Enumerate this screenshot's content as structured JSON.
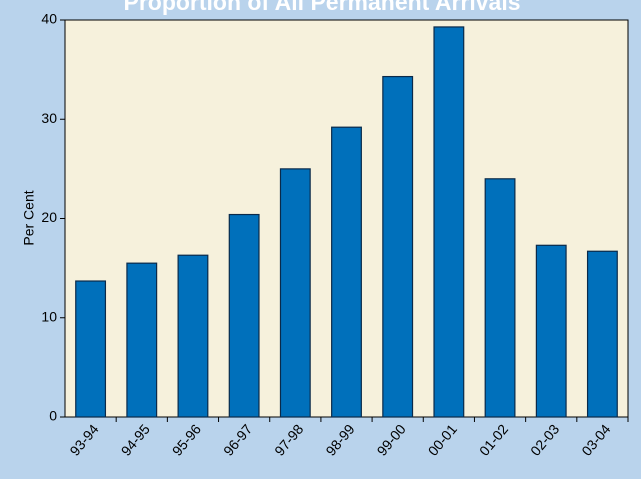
{
  "chart_data": {
    "type": "bar",
    "title": "Proportion of All Permanent Arrivals",
    "y_label": "Per Cent",
    "categories": [
      "93-94",
      "94-95",
      "95-96",
      "96-97",
      "97-98",
      "98-99",
      "99-00",
      "00-01",
      "01-02",
      "02-03",
      "03-04"
    ],
    "values": [
      13.7,
      15.5,
      16.3,
      20.4,
      25.0,
      29.2,
      34.3,
      39.3,
      24.0,
      17.3,
      16.7
    ],
    "color": "#0070bb",
    "ylim": [
      0,
      40
    ],
    "yticks": [
      0,
      10,
      20,
      30,
      40
    ],
    "grid": false
  }
}
